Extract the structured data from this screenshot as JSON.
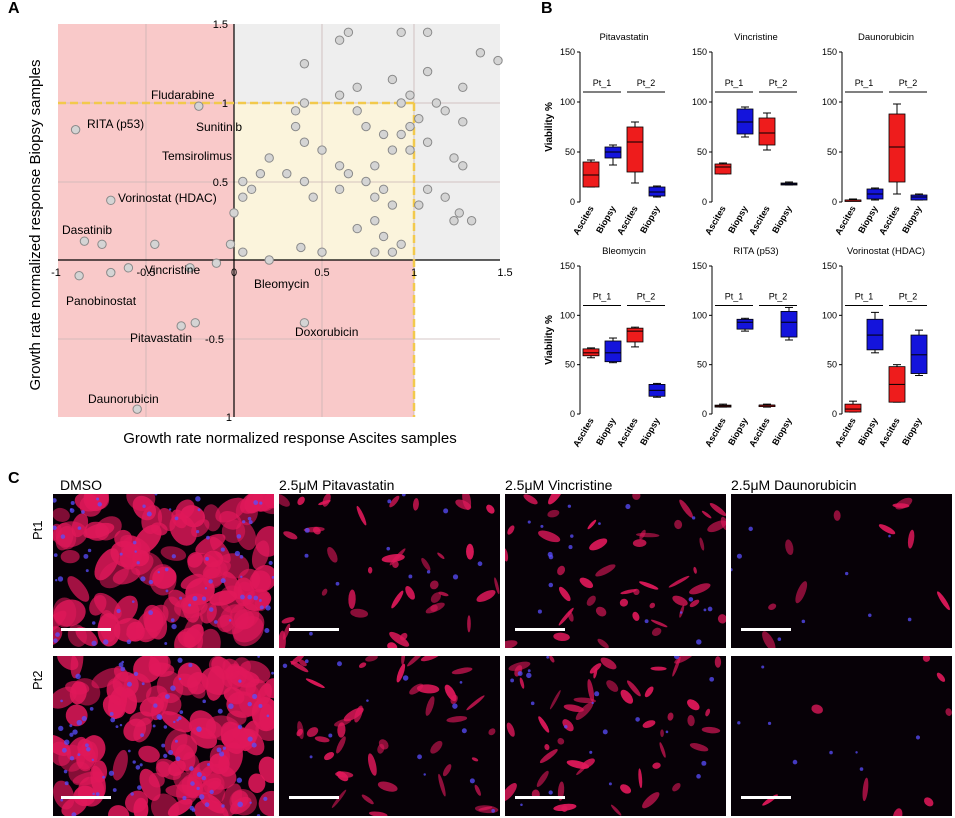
{
  "panels": {
    "A": "A",
    "B": "B",
    "C": "C"
  },
  "colors": {
    "red_zone": "#f9c9c9",
    "yellow_zone": "#fbf4dc",
    "grey_zone": "#eeeeee",
    "dash": "#f2c94c",
    "point": "#d4d4d4",
    "ascites": "#ee1c1c",
    "biopsy": "#1414dc"
  },
  "scatter": {
    "xlabel": "Growth rate normalized response Ascites samples",
    "ylabel": "Growth rate normalized response Biopsy samples",
    "xticks": [
      "-1",
      "-0.5",
      "0",
      "0.5",
      "1",
      "1.5"
    ],
    "yticks_pos": [
      "1.5",
      "1",
      "0.5"
    ],
    "yticks_neg": [
      "-0.5",
      "-1"
    ],
    "labels": {
      "fludarabine": "Fludarabine",
      "rita": "RITA (p53)",
      "sunitinib": "Sunitinib",
      "temsirolimus": "Temsirolimus",
      "vorinostat": "Vorinostat (HDAC)",
      "dasatinib": "Dasatinib",
      "vincristine": "Vincristine",
      "panobinostat": "Panobinostat",
      "bleomycin": "Bleomycin",
      "pitavastatin": "Pitavastatin",
      "doxorubicin": "Doxorubicin",
      "daunorubicin": "Daunorubicin"
    }
  },
  "chart_data": [
    {
      "type": "scatter",
      "xlabel": "Growth rate normalized response Ascites samples",
      "ylabel": "Growth rate normalized response Biopsy samples",
      "xlim": [
        -1,
        1.5
      ],
      "ylim": [
        -1,
        1.5
      ],
      "points": [
        [
          -0.2,
          0.98
        ],
        [
          -0.9,
          0.83
        ],
        [
          -0.7,
          0.38
        ],
        [
          -0.75,
          0.1
        ],
        [
          -0.85,
          0.12
        ],
        [
          -0.45,
          0.1
        ],
        [
          -0.6,
          -0.05
        ],
        [
          -0.7,
          -0.08
        ],
        [
          -0.88,
          -0.1
        ],
        [
          -0.25,
          -0.05
        ],
        [
          -0.1,
          -0.02
        ],
        [
          -0.3,
          -0.42
        ],
        [
          -0.22,
          -0.4
        ],
        [
          0.4,
          -0.4
        ],
        [
          -0.55,
          -0.95
        ],
        [
          0.38,
          0.08
        ],
        [
          0.6,
          1.4
        ],
        [
          0.65,
          1.45
        ],
        [
          0.95,
          1.45
        ],
        [
          1.1,
          1.45
        ],
        [
          1.4,
          1.32
        ],
        [
          1.5,
          1.27
        ],
        [
          0.4,
          1.25
        ],
        [
          0.6,
          1.05
        ],
        [
          0.7,
          1.1
        ],
        [
          0.9,
          1.15
        ],
        [
          1.1,
          1.2
        ],
        [
          1.3,
          1.1
        ],
        [
          1.15,
          1.0
        ],
        [
          1.2,
          0.95
        ],
        [
          1.3,
          0.88
        ],
        [
          1.05,
          0.9
        ],
        [
          1.0,
          0.85
        ],
        [
          0.95,
          0.8
        ],
        [
          1.1,
          0.75
        ],
        [
          1.0,
          0.7
        ],
        [
          1.25,
          0.65
        ],
        [
          1.3,
          0.6
        ],
        [
          1.1,
          0.45
        ],
        [
          1.2,
          0.4
        ],
        [
          1.35,
          0.25
        ],
        [
          1.25,
          0.25
        ],
        [
          1.28,
          0.3
        ],
        [
          1.05,
          0.35
        ],
        [
          0.35,
          0.85
        ],
        [
          0.4,
          0.75
        ],
        [
          0.5,
          0.7
        ],
        [
          0.6,
          0.6
        ],
        [
          0.2,
          0.65
        ],
        [
          0.15,
          0.55
        ],
        [
          0.3,
          0.55
        ],
        [
          0.05,
          0.5
        ],
        [
          0.4,
          0.5
        ],
        [
          0.6,
          0.45
        ],
        [
          0.65,
          0.55
        ],
        [
          0.75,
          0.5
        ],
        [
          0.8,
          0.6
        ],
        [
          0.85,
          0.45
        ],
        [
          0.9,
          0.7
        ],
        [
          0.9,
          0.35
        ],
        [
          0.8,
          0.4
        ],
        [
          0.45,
          0.4
        ],
        [
          0.1,
          0.45
        ],
        [
          0.8,
          0.25
        ],
        [
          0.7,
          0.2
        ],
        [
          0.85,
          0.15
        ],
        [
          0.95,
          0.1
        ],
        [
          0.9,
          0.05
        ],
        [
          0.8,
          0.05
        ],
        [
          0.5,
          0.05
        ],
        [
          0.2,
          0.0
        ],
        [
          0.05,
          0.05
        ],
        [
          -0.02,
          0.1
        ],
        [
          0.0,
          0.3
        ],
        [
          0.05,
          0.4
        ],
        [
          0.7,
          0.95
        ],
        [
          0.75,
          0.85
        ],
        [
          0.85,
          0.8
        ],
        [
          1.0,
          1.05
        ],
        [
          0.95,
          1.0
        ],
        [
          0.4,
          1.0
        ],
        [
          0.35,
          0.95
        ]
      ]
    },
    {
      "type": "box",
      "title": "Pitavastatin",
      "ylabel": "Viability %",
      "ylim": [
        0,
        150
      ],
      "categories": [
        "Ascites",
        "Biopsy",
        "Ascites",
        "Biopsy"
      ],
      "groups": [
        "Pt_1",
        "Pt_2"
      ],
      "boxes": [
        {
          "min": 15,
          "q1": 15,
          "median": 27,
          "q3": 40,
          "max": 42,
          "color": "ascites"
        },
        {
          "min": 37,
          "q1": 44,
          "median": 50,
          "q3": 55,
          "max": 57,
          "color": "biopsy"
        },
        {
          "min": 19,
          "q1": 30,
          "median": 60,
          "q3": 75,
          "max": 80,
          "color": "ascites"
        },
        {
          "min": 5,
          "q1": 6,
          "median": 10,
          "q3": 15,
          "max": 16,
          "color": "biopsy"
        }
      ]
    },
    {
      "type": "box",
      "title": "Vincristine",
      "ylim": [
        0,
        150
      ],
      "categories": [
        "Ascites",
        "Biopsy",
        "Ascites",
        "Biopsy"
      ],
      "groups": [
        "Pt_1",
        "Pt_2"
      ],
      "boxes": [
        {
          "min": 28,
          "q1": 28,
          "median": 35,
          "q3": 38,
          "max": 39,
          "color": "ascites"
        },
        {
          "min": 65,
          "q1": 68,
          "median": 80,
          "q3": 93,
          "max": 95,
          "color": "biopsy"
        },
        {
          "min": 52,
          "q1": 57,
          "median": 69,
          "q3": 84,
          "max": 89,
          "color": "ascites"
        },
        {
          "min": 17,
          "q1": 17,
          "median": 18,
          "q3": 19,
          "max": 20,
          "color": "biopsy"
        }
      ]
    },
    {
      "type": "box",
      "title": "Daunorubicin",
      "ylim": [
        0,
        150
      ],
      "categories": [
        "Ascites",
        "Biopsy",
        "Ascites",
        "Biopsy"
      ],
      "groups": [
        "Pt_1",
        "Pt_2"
      ],
      "boxes": [
        {
          "min": 1,
          "q1": 1,
          "median": 2,
          "q3": 2,
          "max": 3,
          "color": "ascites"
        },
        {
          "min": 2,
          "q1": 3,
          "median": 8,
          "q3": 13,
          "max": 14,
          "color": "biopsy"
        },
        {
          "min": 8,
          "q1": 20,
          "median": 55,
          "q3": 88,
          "max": 98,
          "color": "ascites"
        },
        {
          "min": 2,
          "q1": 2,
          "median": 5,
          "q3": 7,
          "max": 8,
          "color": "biopsy"
        }
      ]
    },
    {
      "type": "box",
      "title": "Bleomycin",
      "ylabel": "Viability %",
      "ylim": [
        0,
        150
      ],
      "categories": [
        "Ascites",
        "Biopsy",
        "Ascites",
        "Biopsy"
      ],
      "groups": [
        "Pt_1",
        "Pt_2"
      ],
      "boxes": [
        {
          "min": 57,
          "q1": 59,
          "median": 62,
          "q3": 66,
          "max": 67,
          "color": "ascites"
        },
        {
          "min": 52,
          "q1": 53,
          "median": 62,
          "q3": 74,
          "max": 77,
          "color": "biopsy"
        },
        {
          "min": 68,
          "q1": 73,
          "median": 84,
          "q3": 87,
          "max": 88,
          "color": "ascites"
        },
        {
          "min": 17,
          "q1": 18,
          "median": 24,
          "q3": 30,
          "max": 31,
          "color": "biopsy"
        }
      ]
    },
    {
      "type": "box",
      "title": "RITA (p53)",
      "ylim": [
        0,
        150
      ],
      "categories": [
        "Ascites",
        "Biopsy",
        "Ascites",
        "Biopsy"
      ],
      "groups": [
        "Pt_1",
        "Pt_2"
      ],
      "boxes": [
        {
          "min": 7,
          "q1": 7,
          "median": 8,
          "q3": 9,
          "max": 10,
          "color": "ascites"
        },
        {
          "min": 84,
          "q1": 86,
          "median": 93,
          "q3": 96,
          "max": 97,
          "color": "biopsy"
        },
        {
          "min": 7,
          "q1": 8,
          "median": 9,
          "q3": 9,
          "max": 10,
          "color": "ascites"
        },
        {
          "min": 75,
          "q1": 78,
          "median": 93,
          "q3": 104,
          "max": 108,
          "color": "biopsy"
        }
      ]
    },
    {
      "type": "box",
      "title": "Vorinostat (HDAC)",
      "ylim": [
        0,
        150
      ],
      "categories": [
        "Ascites",
        "Biopsy",
        "Ascites",
        "Biopsy"
      ],
      "groups": [
        "Pt_1",
        "Pt_2"
      ],
      "boxes": [
        {
          "min": 2,
          "q1": 2,
          "median": 5,
          "q3": 10,
          "max": 13,
          "color": "ascites"
        },
        {
          "min": 62,
          "q1": 65,
          "median": 80,
          "q3": 96,
          "max": 103,
          "color": "biopsy"
        },
        {
          "min": 12,
          "q1": 12,
          "median": 30,
          "q3": 48,
          "max": 50,
          "color": "ascites"
        },
        {
          "min": 39,
          "q1": 41,
          "median": 60,
          "q3": 80,
          "max": 85,
          "color": "biopsy"
        }
      ]
    }
  ],
  "boxplots": {
    "ylabel": "Viability %",
    "yticks": [
      "150",
      "100",
      "50",
      "0"
    ],
    "groups": [
      "Pt_1",
      "Pt_2"
    ],
    "categories": [
      "Ascites",
      "Biopsy",
      "Ascites",
      "Biopsy"
    ]
  },
  "micrographs": {
    "columns": [
      "DMSO",
      "2.5μM Pitavastatin",
      "2.5μM Vincristine",
      "2.5μM Daunorubicin"
    ],
    "rows": [
      "Pt1",
      "Pt2"
    ]
  }
}
